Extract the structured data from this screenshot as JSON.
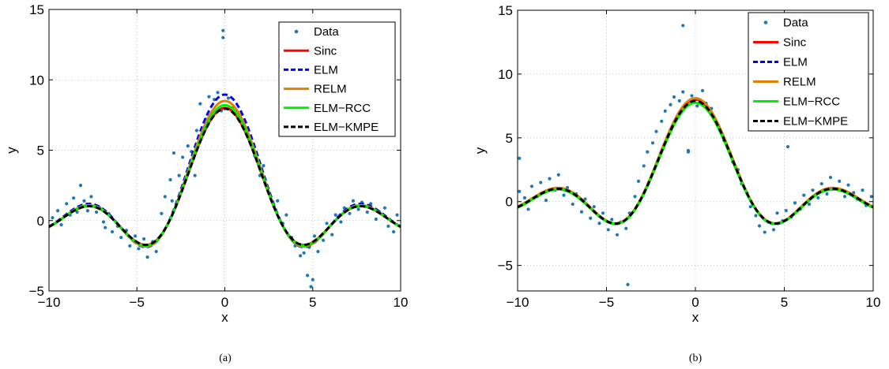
{
  "chart_data": [
    {
      "type": "line",
      "caption": "(a)",
      "xlabel": "x",
      "ylabel": "y",
      "xlim": [
        -10,
        10
      ],
      "ylim": [
        -5,
        15
      ],
      "xticks": [
        -10,
        -5,
        0,
        5,
        10
      ],
      "yticks": [
        -5,
        0,
        5,
        10,
        15
      ],
      "grid": true,
      "legend_position": "top-right",
      "legend": [
        "Data",
        "Sinc",
        "ELM",
        "RELM",
        "ELM−RCC",
        "ELM−KMPE"
      ],
      "series": [
        {
          "name": "Data",
          "kind": "scatter",
          "color": "#1f77b4",
          "x": [
            -9.8,
            -9.5,
            -9.3,
            -9.0,
            -8.8,
            -8.6,
            -8.4,
            -8.2,
            -8.0,
            -7.8,
            -7.6,
            -7.3,
            -7.1,
            -6.9,
            -6.6,
            -6.4,
            -6.1,
            -5.9,
            -5.6,
            -5.4,
            -5.1,
            -4.9,
            -4.6,
            -4.4,
            -4.1,
            -3.9,
            -3.6,
            -3.4,
            -3.1,
            -2.9,
            -2.6,
            -2.4,
            -2.1,
            -1.9,
            -1.6,
            -1.4,
            -1.1,
            -0.9,
            -0.6,
            -0.4,
            -0.2,
            -0.1,
            -0.1,
            0.2,
            0.5,
            0.7,
            1.0,
            1.2,
            1.5,
            1.7,
            2.0,
            2.2,
            2.5,
            2.8,
            3.0,
            3.3,
            3.5,
            3.8,
            4.0,
            4.3,
            4.5,
            4.8,
            4.9,
            5.1,
            5.3,
            5.6,
            5.8,
            6.1,
            6.3,
            6.6,
            6.8,
            7.1,
            7.3,
            7.6,
            7.8,
            8.1,
            8.3,
            8.6,
            8.8,
            9.1,
            9.3,
            9.6,
            9.8,
            -6.8,
            -3.0,
            -1.7,
            1.6,
            4.7,
            5.0
          ],
          "y": [
            0.2,
            0.7,
            -0.3,
            1.2,
            0.4,
            1.6,
            0.6,
            2.5,
            1.4,
            0.7,
            1.7,
            0.6,
            0.9,
            -0.1,
            0.5,
            -0.8,
            -0.4,
            -1.2,
            -0.7,
            -1.8,
            -1.1,
            -2.0,
            -1.3,
            -2.6,
            -1.5,
            -2.2,
            0.5,
            1.7,
            2.9,
            4.8,
            3.2,
            4.5,
            5.3,
            4.9,
            6.4,
            8.3,
            7.2,
            8.8,
            8.6,
            9.1,
            7.8,
            13.5,
            13.0,
            8.7,
            8.1,
            7.7,
            6.9,
            6.4,
            5.5,
            4.6,
            3.2,
            3.9,
            2.0,
            1.0,
            1.4,
            -0.2,
            0.4,
            -1.2,
            -1.8,
            -2.5,
            -2.3,
            -1.9,
            -4.7,
            -1.1,
            -2.2,
            -1.4,
            -0.2,
            -1.0,
            0.4,
            -0.1,
            0.9,
            0.5,
            1.4,
            0.8,
            1.3,
            0.6,
            1.2,
            0.1,
            0.6,
            0.9,
            -0.4,
            -0.8,
            0.4,
            -0.5,
            1.4,
            3.2,
            5.4,
            -3.9,
            -4.2
          ]
        },
        {
          "name": "Sinc",
          "kind": "line",
          "color": "#ff0000",
          "style": "solid",
          "amplitude": 8.0,
          "bias": 0.0
        },
        {
          "name": "ELM",
          "kind": "line",
          "color": "#0000ff",
          "style": "dashed",
          "amplitude": 8.9,
          "bias": 0.05
        },
        {
          "name": "RELM",
          "kind": "line",
          "color": "#e08000",
          "style": "solid",
          "amplitude": 8.5,
          "bias": 0.0
        },
        {
          "name": "ELM−RCC",
          "kind": "line",
          "color": "#00ee00",
          "style": "solid",
          "amplitude": 8.2,
          "bias": 0.0
        },
        {
          "name": "ELM−KMPE",
          "kind": "line",
          "color": "#000000",
          "style": "dashed",
          "amplitude": 7.95,
          "bias": 0.0
        }
      ]
    },
    {
      "type": "line",
      "caption": "(b)",
      "xlabel": "x",
      "ylabel": "y",
      "xlim": [
        -10,
        10
      ],
      "ylim": [
        -7,
        15
      ],
      "xticks": [
        -10,
        -5,
        0,
        5,
        10
      ],
      "yticks": [
        -5,
        0,
        5,
        10,
        15
      ],
      "grid": true,
      "legend_position": "top-right",
      "legend": [
        "Data",
        "Sinc",
        "ELM",
        "RELM",
        "ELM−RCC",
        "ELM−KMPE"
      ],
      "series": [
        {
          "name": "Data",
          "kind": "scatter",
          "color": "#1f77b4",
          "x": [
            -9.9,
            -9.6,
            -9.4,
            -9.2,
            -8.9,
            -8.7,
            -8.4,
            -8.2,
            -7.9,
            -7.7,
            -7.4,
            -7.2,
            -6.9,
            -6.7,
            -6.4,
            -6.2,
            -5.9,
            -5.7,
            -5.4,
            -5.2,
            -4.9,
            -4.7,
            -4.4,
            -4.2,
            -3.9,
            -3.7,
            -3.4,
            -3.2,
            -2.9,
            -2.7,
            -2.4,
            -2.2,
            -1.9,
            -1.7,
            -1.4,
            -1.2,
            -0.9,
            -0.7,
            -0.4,
            -0.2,
            0.1,
            0.4,
            0.6,
            0.9,
            1.1,
            1.4,
            1.6,
            1.9,
            2.1,
            2.4,
            2.6,
            2.9,
            3.1,
            3.4,
            3.6,
            3.9,
            4.1,
            4.4,
            4.6,
            4.9,
            5.1,
            5.4,
            5.6,
            5.9,
            6.1,
            6.4,
            6.6,
            6.9,
            7.1,
            7.4,
            7.6,
            7.9,
            8.1,
            8.4,
            8.6,
            8.9,
            9.1,
            9.4,
            9.6,
            9.9,
            -9.9,
            -3.8,
            -0.7,
            -0.4,
            5.2
          ],
          "y": [
            0.8,
            0.3,
            -0.6,
            1.2,
            0.4,
            1.5,
            0.1,
            1.8,
            0.9,
            2.1,
            0.5,
            1.1,
            -0.2,
            0.6,
            -0.8,
            0.2,
            -1.3,
            -0.4,
            -1.7,
            -0.9,
            -2.2,
            -1.4,
            -2.6,
            -1.6,
            -2.1,
            -0.9,
            0.4,
            1.6,
            2.8,
            3.9,
            4.6,
            5.5,
            6.3,
            7.1,
            7.6,
            8.2,
            7.9,
            8.6,
            3.9,
            8.3,
            7.5,
            8.7,
            7.7,
            7.3,
            6.4,
            5.6,
            4.8,
            3.9,
            3.1,
            2.5,
            1.4,
            0.7,
            -0.4,
            -1.1,
            -1.9,
            -2.4,
            -1.6,
            -2.2,
            -0.9,
            -1.5,
            -0.7,
            -1.2,
            -0.1,
            -0.6,
            0.5,
            -0.2,
            0.9,
            0.3,
            1.4,
            0.6,
            1.9,
            1.0,
            1.6,
            0.4,
            1.3,
            0.7,
            0.2,
            0.9,
            -0.3,
            0.4,
            3.4,
            -6.5,
            13.8,
            4.0,
            4.3
          ]
        },
        {
          "name": "Sinc",
          "kind": "line",
          "color": "#ff0000",
          "style": "solid",
          "amplitude": 8.0,
          "bias": 0.0
        },
        {
          "name": "ELM",
          "kind": "line",
          "color": "#0000ff",
          "style": "dashed",
          "amplitude": 8.1,
          "bias": 0.0
        },
        {
          "name": "RELM",
          "kind": "line",
          "color": "#e08000",
          "style": "solid",
          "amplitude": 8.05,
          "bias": 0.05
        },
        {
          "name": "ELM−RCC",
          "kind": "line",
          "color": "#00ee00",
          "style": "solid",
          "amplitude": 7.8,
          "bias": -0.05
        },
        {
          "name": "ELM−KMPE",
          "kind": "line",
          "color": "#000000",
          "style": "dashed",
          "amplitude": 7.9,
          "bias": 0.0
        }
      ]
    }
  ]
}
